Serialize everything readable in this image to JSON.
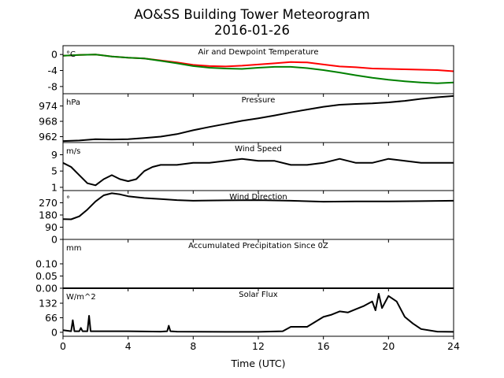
{
  "title": "AO&SS Building Tower Meteorogram",
  "subtitle": "2016-01-26",
  "xlabel": "Time (UTC)",
  "x_ticks": [
    "0",
    "4",
    "8",
    "12",
    "16",
    "20",
    "24"
  ],
  "colors": {
    "temperature": "#ff0000",
    "dewpoint": "#008000",
    "default": "#000000"
  },
  "chart_data": [
    {
      "type": "line",
      "title": "Air and Dewpoint Temperature",
      "ylabel": "°C",
      "xlim": [
        0,
        24
      ],
      "ylim": [
        -9.8,
        2.2
      ],
      "yticks": [
        0,
        -4,
        -8
      ],
      "series": [
        {
          "key": "temperature",
          "x": [
            0,
            1,
            2,
            3,
            4,
            5,
            6,
            7,
            8,
            9,
            10,
            11,
            12,
            13,
            14,
            15,
            16,
            17,
            18,
            19,
            20,
            21,
            22,
            23,
            24
          ],
          "values": [
            -0.3,
            -0.1,
            0.0,
            -0.5,
            -0.8,
            -1.0,
            -1.5,
            -2.0,
            -2.6,
            -2.9,
            -3.0,
            -2.8,
            -2.5,
            -2.2,
            -1.9,
            -2.0,
            -2.5,
            -3.0,
            -3.2,
            -3.5,
            -3.6,
            -3.7,
            -3.8,
            -3.9,
            -4.2
          ]
        },
        {
          "key": "dewpoint",
          "x": [
            0,
            1,
            2,
            3,
            4,
            5,
            6,
            7,
            8,
            9,
            10,
            11,
            12,
            13,
            14,
            15,
            16,
            17,
            18,
            19,
            20,
            21,
            22,
            23,
            24
          ],
          "values": [
            -0.3,
            -0.1,
            0.0,
            -0.5,
            -0.8,
            -1.0,
            -1.6,
            -2.2,
            -2.9,
            -3.3,
            -3.5,
            -3.6,
            -3.3,
            -3.1,
            -3.1,
            -3.4,
            -3.9,
            -4.5,
            -5.2,
            -5.8,
            -6.3,
            -6.7,
            -7.0,
            -7.2,
            -7.0
          ]
        }
      ]
    },
    {
      "type": "line",
      "title": "Pressure",
      "ylabel": "hPa",
      "xlim": [
        0,
        24
      ],
      "ylim": [
        959.7,
        978.8
      ],
      "yticks": [
        962,
        968,
        974
      ],
      "series": [
        {
          "key": "pressure",
          "x": [
            0,
            1,
            2,
            3,
            4,
            5,
            6,
            7,
            8,
            9,
            10,
            11,
            12,
            13,
            14,
            15,
            16,
            17,
            18,
            19,
            20,
            21,
            22,
            23,
            24
          ],
          "values": [
            960.3,
            960.5,
            961.0,
            960.9,
            961.0,
            961.5,
            962.0,
            963.0,
            964.5,
            965.8,
            967.0,
            968.2,
            969.2,
            970.3,
            971.5,
            972.6,
            973.7,
            974.5,
            974.8,
            975.0,
            975.4,
            976.0,
            976.8,
            977.4,
            977.9
          ]
        }
      ]
    },
    {
      "type": "line",
      "title": "Wind Speed",
      "ylabel": "m/s",
      "xlim": [
        0,
        24
      ],
      "ylim": [
        0.2,
        12.0
      ],
      "yticks": [
        1,
        5,
        9
      ],
      "series": [
        {
          "key": "wind_speed",
          "x": [
            0,
            0.5,
            1,
            1.5,
            2,
            2.5,
            3,
            3.5,
            4,
            4.5,
            5,
            5.5,
            6,
            7,
            8,
            9,
            10,
            11,
            12,
            13,
            14,
            15,
            16,
            17,
            18,
            19,
            20,
            21,
            22,
            23,
            24
          ],
          "values": [
            7,
            6,
            4,
            2,
            1.5,
            3,
            4,
            3,
            2.5,
            3,
            5,
            6,
            6.5,
            6.5,
            7,
            7,
            7.5,
            8,
            7.5,
            7.5,
            6.5,
            6.5,
            7,
            8,
            7,
            7,
            8,
            7.5,
            7,
            7,
            7
          ]
        }
      ]
    },
    {
      "type": "line",
      "title": "Wind Direction",
      "ylabel": "°",
      "xlim": [
        0,
        24
      ],
      "ylim": [
        0,
        360
      ],
      "yticks": [
        0,
        90,
        180,
        270
      ],
      "series": [
        {
          "key": "wind_direction",
          "x": [
            0,
            0.5,
            1,
            1.5,
            2,
            2.5,
            3,
            3.5,
            4,
            5,
            6,
            7,
            8,
            10,
            12,
            14,
            16,
            18,
            20,
            22,
            24
          ],
          "values": [
            150,
            148,
            170,
            220,
            280,
            325,
            340,
            332,
            318,
            305,
            298,
            290,
            285,
            288,
            290,
            285,
            278,
            280,
            280,
            282,
            285
          ]
        }
      ]
    },
    {
      "type": "line",
      "title": "Accumulated Precipitation Since 0Z",
      "ylabel": "mm",
      "xlim": [
        0,
        24
      ],
      "ylim": [
        0,
        0.2
      ],
      "yticks": [
        0.0,
        0.05,
        0.1
      ],
      "series": [
        {
          "key": "precip",
          "x": [
            0,
            24
          ],
          "values": [
            0,
            0
          ]
        }
      ]
    },
    {
      "type": "line",
      "title": "Solar Flux",
      "ylabel": "W/m^2",
      "xlim": [
        0,
        24
      ],
      "ylim": [
        -18,
        200
      ],
      "yticks": [
        0,
        66,
        132
      ],
      "series": [
        {
          "key": "solar_flux",
          "x": [
            0,
            0.5,
            0.6,
            0.7,
            1.0,
            1.1,
            1.2,
            1.5,
            1.6,
            1.7,
            2,
            4,
            6,
            6.4,
            6.5,
            6.6,
            7,
            10,
            12,
            13.5,
            14,
            15,
            16,
            16.5,
            17,
            17.5,
            18,
            18.5,
            19,
            19.2,
            19.4,
            19.6,
            20,
            20.5,
            21,
            21.5,
            22,
            23,
            24
          ],
          "values": [
            10,
            5,
            55,
            5,
            5,
            20,
            5,
            5,
            75,
            5,
            5,
            5,
            3,
            5,
            30,
            5,
            3,
            2,
            2,
            5,
            25,
            25,
            70,
            80,
            95,
            90,
            105,
            120,
            140,
            100,
            175,
            110,
            165,
            140,
            70,
            40,
            15,
            3,
            2
          ]
        }
      ]
    }
  ]
}
